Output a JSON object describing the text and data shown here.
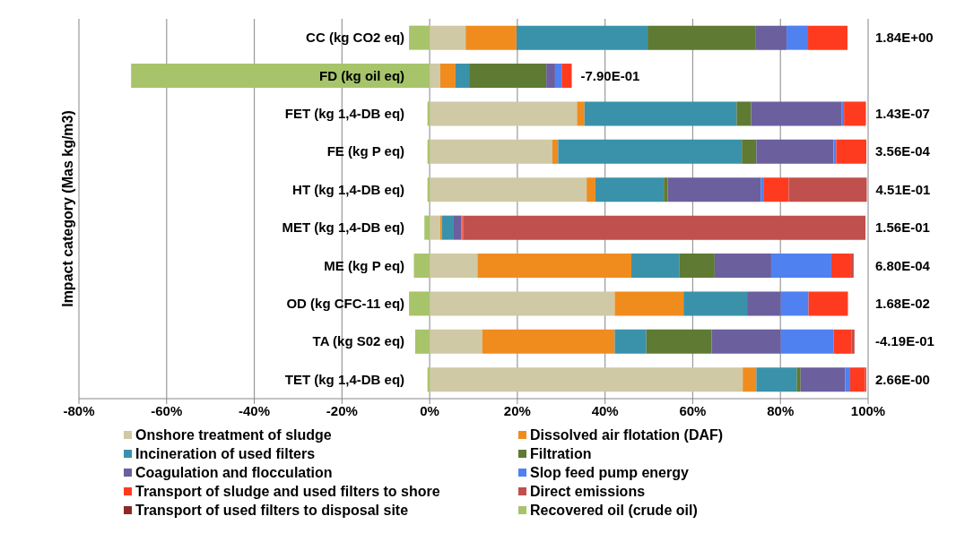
{
  "chart_data": {
    "type": "bar",
    "orientation": "horizontal",
    "stacked": true,
    "ylabel": "Impact category (Mas kg/m3)",
    "categories": [
      "CC (kg CO2 eq)",
      "FD (kg oil eq)",
      "FET (kg 1,4-DB eq)",
      "FE (kg P eq)",
      "HT (kg 1,4-DB eq)",
      "MET (kg 1,4-DB eq)",
      "ME (kg P eq)",
      "OD (kg CFC-11 eq)",
      "TA (kg S02 eq)",
      "TET (kg 1,4-DB eq)"
    ],
    "series": [
      {
        "name": "Onshore treatment of sludge",
        "color": "#cfc9a5",
        "values": [
          8.2,
          2.4,
          33.6,
          28.0,
          35.8,
          2.4,
          10.9,
          42.2,
          12.0,
          71.4
        ]
      },
      {
        "name": "Dissolved air flotation (DAF)",
        "color": "#f08c1e",
        "values": [
          11.6,
          3.5,
          1.7,
          1.3,
          2.0,
          0.4,
          35.1,
          15.7,
          30.2,
          3.1
        ]
      },
      {
        "name": "Incineration of used filters",
        "color": "#3a92aa",
        "values": [
          29.9,
          3.1,
          34.7,
          41.9,
          15.6,
          2.7,
          10.9,
          14.5,
          7.2,
          9.2
        ]
      },
      {
        "name": "Filtration",
        "color": "#5e7a33",
        "values": [
          24.7,
          17.6,
          3.3,
          3.3,
          0.9,
          0,
          8.1,
          0,
          14.9,
          0.9
        ]
      },
      {
        "name": "Coagulation and flocculation",
        "color": "#6b5f9e",
        "values": [
          7.0,
          2.0,
          20.6,
          17.6,
          21.2,
          1.7,
          12.9,
          7.7,
          15.8,
          10.2
        ]
      },
      {
        "name": "Slop feed pump energy",
        "color": "#4f81f0",
        "values": [
          4.9,
          1.5,
          0.6,
          0.6,
          0.6,
          0.2,
          13.7,
          6.3,
          12.0,
          1.1
        ]
      },
      {
        "name": "Transport of sludge and used filters to shore",
        "color": "#ff3b1f",
        "values": [
          9.0,
          2.3,
          5.0,
          6.9,
          5.8,
          0.3,
          4.5,
          9.0,
          4.1,
          3.4
        ]
      },
      {
        "name": "Direct emissions",
        "color": "#c0504d",
        "values": [
          0,
          0,
          0,
          0,
          17.8,
          91.7,
          0.6,
          0,
          0.7,
          0.3
        ]
      },
      {
        "name": "Transport of used filters to  disposal site",
        "color": "#8b2a2a",
        "values": [
          0,
          0,
          0,
          0,
          0,
          0,
          0,
          0,
          0,
          0
        ]
      },
      {
        "name": "Recovered oil (crude oil)",
        "color": "#a7c46a",
        "values": [
          -4.7,
          -68.1,
          -0.5,
          -0.5,
          -0.5,
          -1.2,
          -3.6,
          -4.7,
          -3.3,
          -0.5
        ]
      }
    ],
    "annotations": [
      "1.84E+00",
      "-7.90E-01",
      "1.43E-07",
      "3.56E-04",
      "4.51E-01",
      "1.56E-01",
      "6.80E-04",
      "1.68E-02",
      "-4.19E-01",
      "2.66E-00"
    ],
    "xlim": [
      -80,
      100
    ],
    "xticks": [
      {
        "value": -80,
        "label": "-80%"
      },
      {
        "value": -60,
        "label": "-60%"
      },
      {
        "value": -40,
        "label": "-40%"
      },
      {
        "value": -20,
        "label": "-20%"
      },
      {
        "value": 0,
        "label": "0%"
      },
      {
        "value": 20,
        "label": "20%"
      },
      {
        "value": 40,
        "label": "40%"
      },
      {
        "value": 60,
        "label": "60%"
      },
      {
        "value": 80,
        "label": "80%"
      },
      {
        "value": 100,
        "label": "100%"
      }
    ],
    "grid": "x",
    "legend": "bottom"
  }
}
